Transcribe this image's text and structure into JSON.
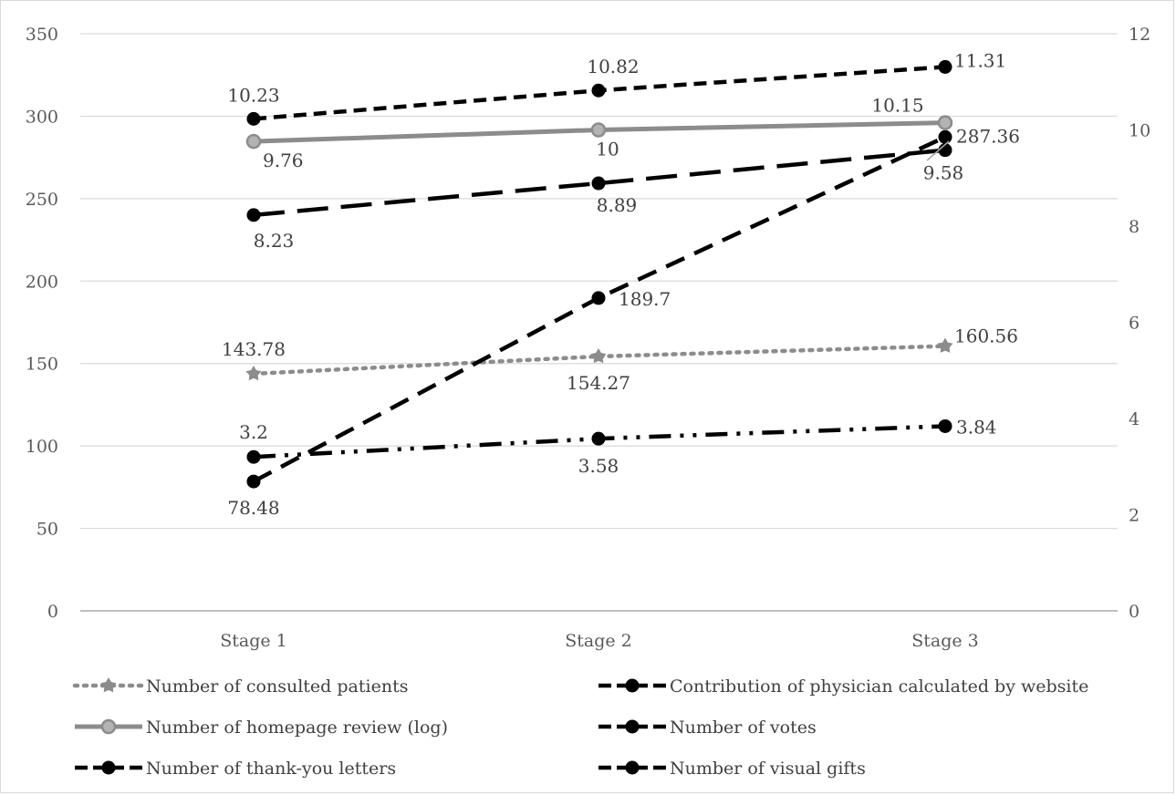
{
  "chart_data": {
    "type": "line",
    "categories": [
      "Stage 1",
      "Stage 2",
      "Stage 3"
    ],
    "y_left": {
      "min": 0,
      "max": 350,
      "step": 50,
      "ticks": [
        "0",
        "50",
        "100",
        "150",
        "200",
        "250",
        "300",
        "350"
      ]
    },
    "y_right": {
      "min": 0,
      "max": 12,
      "step": 2,
      "ticks": [
        "0",
        "2",
        "4",
        "6",
        "8",
        "10",
        "12"
      ]
    },
    "grid": true,
    "legend_position": "bottom",
    "series": [
      {
        "name": "Number of consulted patients",
        "axis": "left",
        "values": [
          143.78,
          154.27,
          160.56
        ],
        "labels": [
          "143.78",
          "154.27",
          "160.56"
        ],
        "color": "#8c8c8c",
        "style": "dotted"
      },
      {
        "name": "Contribution of physician calculated by website",
        "axis": "left",
        "values": [
          78.48,
          189.7,
          287.36
        ],
        "labels": [
          "78.48",
          "189.7",
          "287.36"
        ],
        "color": "#000000",
        "style": "dashed"
      },
      {
        "name": "Number of homepage review (log)",
        "axis": "right",
        "values": [
          9.76,
          10,
          10.15
        ],
        "labels": [
          "9.76",
          "10",
          "10.15"
        ],
        "color": "#8c8c8c",
        "style": "solid"
      },
      {
        "name": "Number of votes",
        "axis": "right",
        "values": [
          10.23,
          10.82,
          11.31
        ],
        "labels": [
          "10.23",
          "10.82",
          "11.31"
        ],
        "color": "#000000",
        "style": "short-dash"
      },
      {
        "name": "Number of thank-you letters",
        "axis": "right",
        "values": [
          8.23,
          8.89,
          9.58
        ],
        "labels": [
          "8.23",
          "8.89",
          "9.58"
        ],
        "color": "#000000",
        "style": "long-dash"
      },
      {
        "name": "Number of visual gifts",
        "axis": "right",
        "values": [
          3.2,
          3.58,
          3.84
        ],
        "labels": [
          "3.2",
          "3.58",
          "3.84"
        ],
        "color": "#000000",
        "style": "dash-dot-dot"
      }
    ]
  }
}
